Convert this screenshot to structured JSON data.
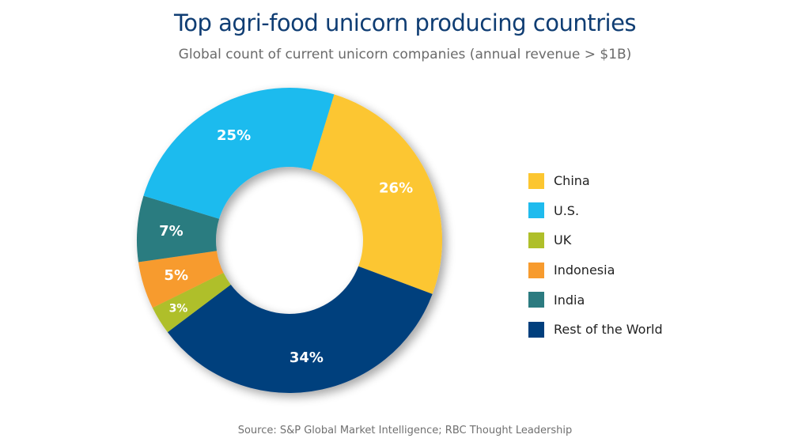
{
  "header": {
    "title": "Top agri-food unicorn producing countries",
    "subtitle": "Global count of current unicorn companies (annual revenue > $1B)"
  },
  "footer": {
    "source": "Source: S&P Global Market Intelligence; RBC Thought Leadership"
  },
  "legend": {
    "items": [
      {
        "label": "China",
        "color": "#fcc630"
      },
      {
        "label": "U.S.",
        "color": "#1fbbee"
      },
      {
        "label": "UK",
        "color": "#afbf2a"
      },
      {
        "label": "Indonesia",
        "color": "#f79b2e"
      },
      {
        "label": "India",
        "color": "#2c7b80"
      },
      {
        "label": "Rest of the World",
        "color": "#003f7d"
      }
    ]
  },
  "chart_data": {
    "type": "pie",
    "subtype": "donut",
    "title": "Top agri-food unicorn producing countries",
    "subtitle": "Global count of current unicorn companies (annual revenue > $1B)",
    "categories": [
      "China",
      "Rest of the World",
      "UK",
      "Indonesia",
      "India",
      "U.S."
    ],
    "values": [
      26,
      34,
      3,
      5,
      7,
      25
    ],
    "labels": [
      "26%",
      "34%",
      "3%",
      "5%",
      "7%",
      "25%"
    ],
    "colors": [
      "#fcc630",
      "#003f7d",
      "#afbf2a",
      "#f79b2e",
      "#2c7b80",
      "#1fbbee"
    ],
    "unit": "%",
    "legend_position": "right",
    "start_angle_deg_clockwise_from_top": 17
  }
}
